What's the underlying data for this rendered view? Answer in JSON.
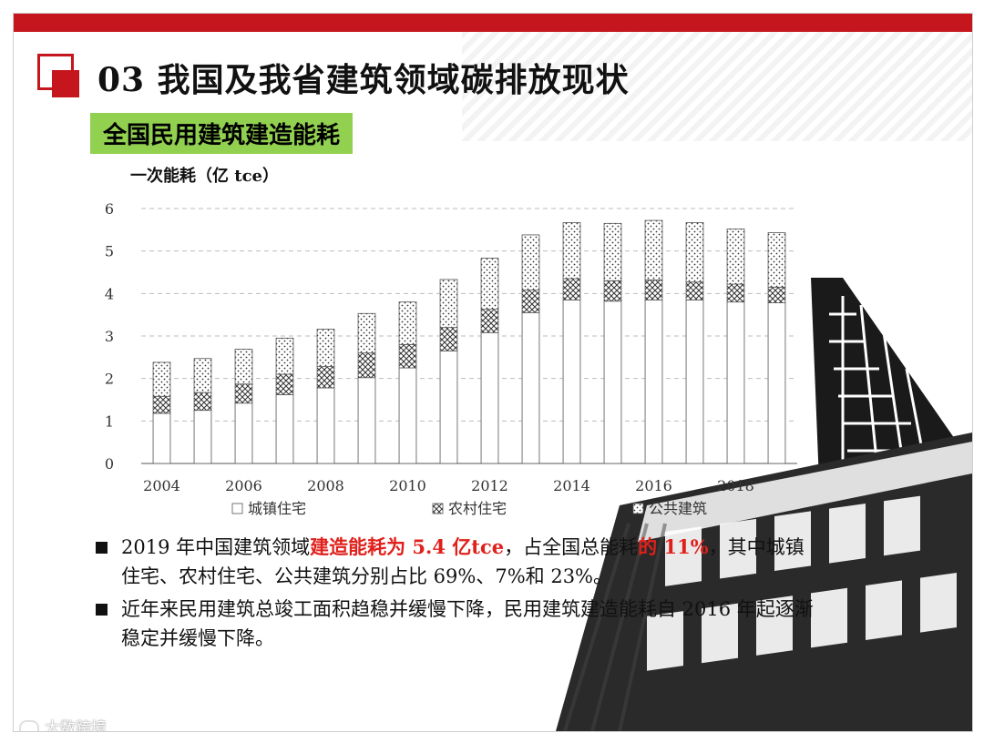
{
  "slide": {
    "title": "03 我国及我省建筑领域碳排放现状",
    "subtitle": "全国民用建筑建造能耗",
    "accent_color": "#c4161c",
    "badge_color": "#92d050",
    "highlight_color": "#e0201b",
    "logo_icon": "red-square-logo-icon",
    "decor_image": "building-facade-image"
  },
  "notes": [
    {
      "before": "2019 年中国建筑领域",
      "highlight1": "建造能耗为 5.4 亿tce",
      "middle": "，占全国总能耗",
      "highlight2": "的 11%",
      "after": "，其中城镇住宅、农村住宅、公共建筑分别占比 69%、7%和 23%。"
    },
    {
      "text": "近年来民用建筑总竣工面积趋稳并缓慢下降，民用建筑建造能耗自 2016 年起逐渐稳定并缓慢下降。"
    }
  ],
  "watermark": "大数跨境",
  "chart_data": {
    "type": "bar",
    "stacked": true,
    "ylabel": "一次能耗（亿 tce）",
    "ylim": [
      0,
      6
    ],
    "yticks": [
      0,
      1,
      2,
      3,
      4,
      5,
      6
    ],
    "xtick_labels": [
      "2004",
      "2006",
      "2008",
      "2010",
      "2012",
      "2014",
      "2016",
      "2018"
    ],
    "categories": [
      "2004",
      "2005",
      "2006",
      "2007",
      "2008",
      "2009",
      "2010",
      "2011",
      "2012",
      "2013",
      "2014",
      "2015",
      "2016",
      "2017",
      "2018",
      "2019"
    ],
    "grid": "horizontal dashed",
    "legend_position": "bottom",
    "series": [
      {
        "name": "城镇住宅",
        "pattern": "solid-white",
        "values": [
          1.18,
          1.25,
          1.42,
          1.62,
          1.78,
          2.02,
          2.25,
          2.65,
          3.08,
          3.55,
          3.85,
          3.82,
          3.85,
          3.85,
          3.8,
          3.78
        ]
      },
      {
        "name": "农村住宅",
        "pattern": "crosshatch",
        "values": [
          0.4,
          0.42,
          0.45,
          0.48,
          0.5,
          0.58,
          0.55,
          0.55,
          0.55,
          0.53,
          0.5,
          0.48,
          0.47,
          0.42,
          0.42,
          0.37
        ]
      },
      {
        "name": "公共建筑",
        "pattern": "dotted",
        "values": [
          0.8,
          0.8,
          0.82,
          0.85,
          0.88,
          0.93,
          1.0,
          1.13,
          1.2,
          1.3,
          1.32,
          1.35,
          1.4,
          1.4,
          1.3,
          1.28
        ]
      }
    ]
  }
}
